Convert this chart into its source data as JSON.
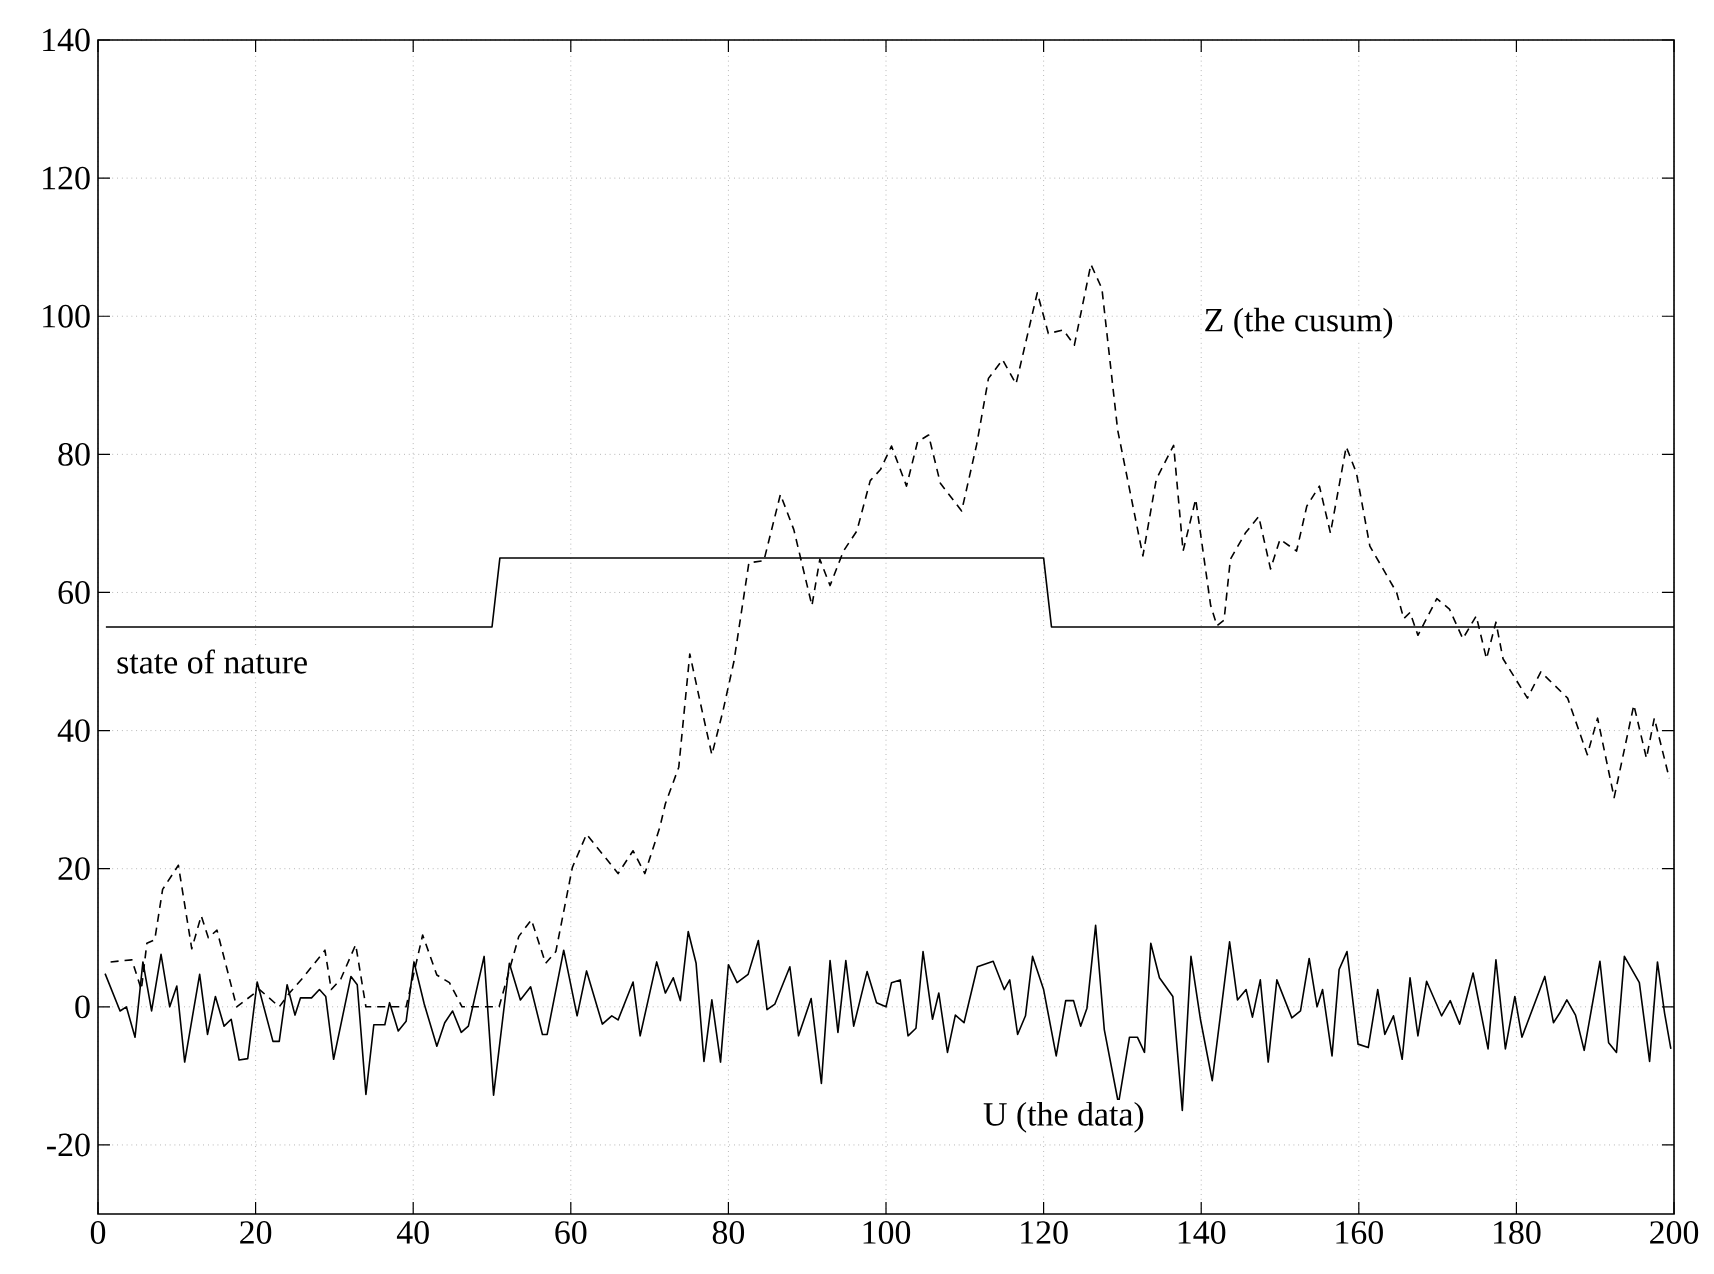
{
  "chart_data": {
    "type": "line",
    "xlim": [
      0,
      200
    ],
    "ylim": [
      -30,
      140
    ],
    "xticks": [
      0,
      20,
      40,
      60,
      80,
      100,
      120,
      140,
      160,
      180,
      200
    ],
    "yticks": [
      -20,
      0,
      20,
      40,
      60,
      80,
      100,
      120,
      140
    ],
    "grid": true,
    "marker": "none",
    "series": [
      {
        "name": "state of nature",
        "color": "#000000",
        "line_style": "solid",
        "x": [
          1,
          50,
          51,
          120,
          121,
          200
        ],
        "values": [
          55,
          55,
          65,
          65,
          55,
          55
        ]
      },
      {
        "name": "Z (the cusum)",
        "color": "#000000",
        "line_style": "dashed",
        "x": [
          1.6,
          4.3,
          5.5,
          6.2,
          7.2,
          8.2,
          10.2,
          11.9,
          13.1,
          14,
          15.1,
          17.6,
          20.5,
          23,
          24.3,
          26,
          28.8,
          29.6,
          30.8,
          32.7,
          34,
          39.1,
          41.2,
          43,
          44.6,
          46.2,
          50.9,
          53.4,
          55,
          56.8,
          58.1,
          60.2,
          62,
          66,
          67.9,
          69.4,
          71.3,
          72,
          73.7,
          75.1,
          76.5,
          77.9,
          79.3,
          80.7,
          82.6,
          84.5,
          86.6,
          88.3,
          90.6,
          91.6,
          92.9,
          94.6,
          96.3,
          98,
          99.3,
          100.7,
          102.6,
          104,
          105.4,
          106.9,
          109.6,
          111.5,
          113,
          114.8,
          116.5,
          119.2,
          120.6,
          122.5,
          123.9,
          126,
          127.4,
          129.4,
          132.6,
          134.3,
          136.5,
          137.7,
          139.3,
          141.2,
          142,
          142.9,
          143.7,
          145.6,
          147.3,
          148.8,
          150,
          152.1,
          153.4,
          155,
          156.4,
          158.4,
          159.7,
          161.4,
          164.8,
          165.7,
          166.5,
          167.5,
          169.9,
          171.5,
          173.2,
          174.9,
          176.2,
          177.4,
          178.3,
          181.4,
          183.1,
          186.5,
          189,
          190.3,
          192.4,
          194.9,
          196.5,
          197.5,
          199.4
        ],
        "values": [
          6.5,
          6.8,
          2.5,
          9.2,
          9.7,
          17,
          20.5,
          8.4,
          13.2,
          10,
          11.1,
          0,
          2.5,
          0,
          2,
          4.2,
          8.2,
          2.5,
          4,
          9,
          0,
          0,
          10.4,
          4.6,
          3.5,
          0,
          0,
          10.2,
          12.6,
          6.3,
          8,
          20.2,
          25,
          19.3,
          22.6,
          19.3,
          26,
          29.4,
          34.7,
          51.1,
          43.7,
          36.5,
          42.8,
          50,
          64.3,
          64.6,
          74.2,
          69.1,
          58.1,
          64.8,
          61,
          66,
          68.9,
          76.2,
          77.8,
          81.2,
          75.4,
          81.8,
          82.8,
          75.8,
          71.8,
          81.4,
          91,
          93.7,
          90.2,
          103.4,
          97.5,
          98,
          95.8,
          107.5,
          104,
          83.5,
          65.3,
          76.4,
          81.3,
          66,
          73.5,
          58.1,
          55.2,
          56,
          64.8,
          68.6,
          71,
          63.4,
          67.7,
          66,
          72.5,
          75.4,
          68.6,
          81.1,
          77.3,
          66.7,
          60,
          56.2,
          57.1,
          53.8,
          59.1,
          57.6,
          53.3,
          56.6,
          50.4,
          55.7,
          50.4,
          44.7,
          48.5,
          44.7,
          36.5,
          41.8,
          30.3,
          43.7,
          36,
          41.8,
          33.1
        ]
      },
      {
        "name": "U (the data)",
        "color": "#000000",
        "line_style": "solid",
        "x": [
          0.9,
          2.8,
          3.6,
          4.7,
          5.7,
          6.8,
          8,
          9.1,
          10,
          11,
          12.9,
          13.9,
          14.9,
          16,
          16.9,
          17.9,
          19,
          20.2,
          22.2,
          23,
          24,
          25,
          25.7,
          27.1,
          28.1,
          28.9,
          29.9,
          32.1,
          32.9,
          34,
          35,
          36.4,
          37,
          38.1,
          39.1,
          40.1,
          41.4,
          43,
          44,
          45,
          46.1,
          47,
          49,
          50.2,
          52.2,
          53.6,
          54.9,
          56.4,
          57,
          59.1,
          60.8,
          62,
          64,
          65.2,
          66,
          67.9,
          68.8,
          70.9,
          72,
          73,
          73.9,
          74.9,
          75.9,
          76.9,
          77.9,
          79,
          80,
          81.1,
          82.5,
          83.8,
          84.9,
          85.9,
          87.8,
          88.9,
          90.5,
          91.8,
          92.9,
          93.9,
          94.9,
          95.9,
          97.6,
          98.8,
          100,
          100.7,
          101.8,
          102.8,
          103.8,
          104.7,
          105.9,
          106.7,
          107.8,
          108.8,
          109.9,
          111.6,
          113.6,
          115,
          115.7,
          116.7,
          117.7,
          118.6,
          120,
          121.6,
          122.8,
          123.8,
          124.7,
          125.5,
          126.6,
          127.7,
          129.5,
          130.9,
          131.9,
          132.8,
          133.6,
          134.7,
          136.4,
          137.6,
          138.7,
          139.9,
          141.4,
          143.6,
          144.6,
          145.7,
          146.5,
          147.5,
          148.5,
          149.6,
          151.5,
          152.6,
          153.7,
          154.7,
          155.4,
          156.6,
          157.5,
          158.5,
          159.9,
          161.2,
          162.4,
          163.3,
          164.4,
          165.5,
          166.5,
          167.5,
          168.6,
          170.5,
          171.6,
          172.8,
          174.5,
          176.4,
          177.4,
          178.6,
          179.8,
          180.7,
          183.6,
          184.7,
          185.5,
          186.4,
          187.5,
          188.6,
          190.6,
          191.7,
          192.7,
          193.7,
          195.6,
          196.9,
          197.9,
          198.8,
          199.6
        ],
        "values": [
          4.8,
          -0.6,
          0,
          -4.4,
          6.5,
          -0.6,
          7.6,
          0,
          3,
          -8,
          4.7,
          -4,
          1.5,
          -2.8,
          -1.8,
          -7.7,
          -7.5,
          3.6,
          -5,
          -5,
          3.2,
          -1.2,
          1.3,
          1.3,
          2.5,
          1.5,
          -7.6,
          4.4,
          3.2,
          -12.7,
          -2.6,
          -2.6,
          0.6,
          -3.5,
          -2.1,
          6.5,
          0.4,
          -5.7,
          -2.3,
          -0.6,
          -3.7,
          -2.8,
          7.3,
          -12.8,
          6.3,
          1,
          2.9,
          -4,
          -4,
          8.2,
          -1.3,
          5.2,
          -2.5,
          -1.3,
          -1.9,
          3.6,
          -4.2,
          6.5,
          2,
          4.2,
          0.9,
          10.9,
          6.3,
          -7.9,
          1,
          -8,
          6.1,
          3.5,
          4.7,
          9.6,
          -0.4,
          0.4,
          5.8,
          -4.2,
          1.2,
          -11.1,
          6.7,
          -3.7,
          6.7,
          -2.8,
          5.1,
          0.6,
          0,
          3.5,
          3.9,
          -4.2,
          -3.1,
          8,
          -1.8,
          2,
          -6.6,
          -1.2,
          -2.3,
          5.8,
          6.6,
          2.5,
          3.9,
          -4,
          -1.3,
          7.3,
          2.5,
          -7.1,
          0.9,
          0.9,
          -2.8,
          -0.2,
          11.8,
          -3.3,
          -14,
          -4.4,
          -4.4,
          -6.6,
          9.2,
          4.2,
          1.5,
          -15,
          7.3,
          -1.8,
          -10.7,
          9.4,
          1,
          2.5,
          -1.5,
          3.9,
          -8,
          3.9,
          -1.6,
          -0.6,
          7,
          0,
          2.5,
          -7.1,
          5.4,
          8,
          -5.4,
          -5.9,
          2.5,
          -4,
          -1.3,
          -7.6,
          4.2,
          -4.2,
          3.7,
          -1.3,
          0.9,
          -2.5,
          4.9,
          -6.1,
          6.8,
          -6.1,
          1.5,
          -4.4,
          4.4,
          -2.3,
          -0.9,
          1,
          -1.2,
          -6.3,
          6.6,
          -5.2,
          -6.6,
          7.3,
          3.5,
          -7.9,
          6.5,
          -0.9,
          -6.1
        ]
      }
    ]
  }
}
